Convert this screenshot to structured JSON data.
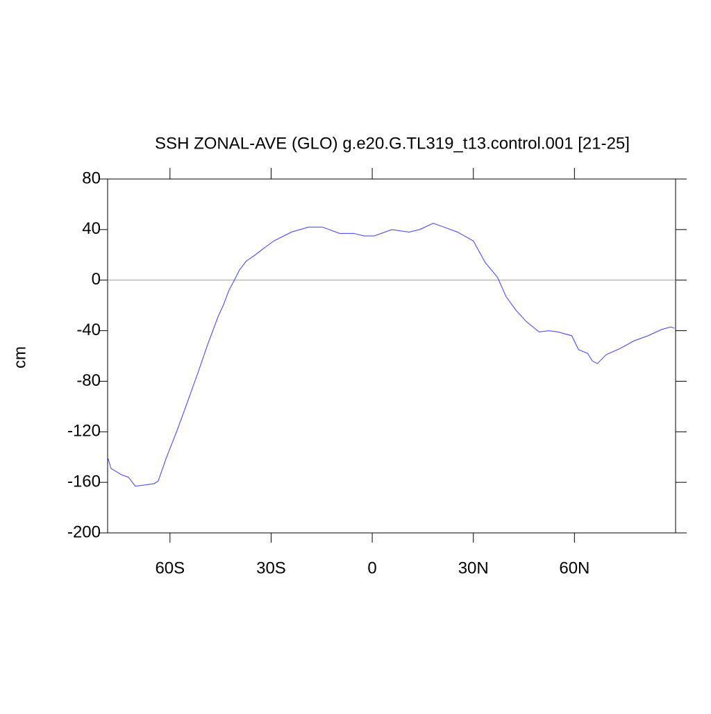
{
  "chart_data": {
    "type": "line",
    "title": "SSH ZONAL-AVE (GLO) g.e20.G.TL319_t13.control.001 [21-25]",
    "y_label": "cm",
    "x": [
      -78.5,
      -77.5,
      -74.4,
      -72.3,
      -70.3,
      -67.2,
      -64.7,
      -63.5,
      -61.0,
      -57.9,
      -54.9,
      -51.8,
      -48.7,
      -45.6,
      -44.2,
      -42.5,
      -40.9,
      -39.4,
      -37.4,
      -34.7,
      -32.3,
      -29.2,
      -24.0,
      -18.9,
      -14.8,
      -9.7,
      -5.5,
      -2.5,
      0.6,
      5.8,
      10.9,
      14.0,
      18.1,
      21.2,
      25.3,
      30.0,
      33.5,
      36.0,
      37.2,
      39.7,
      42.7,
      45.8,
      49.5,
      52.4,
      55.1,
      59.2,
      61.2,
      63.9,
      65.3,
      66.8,
      69.4,
      73.6,
      77.7,
      81.8,
      85.9,
      88.6,
      89.6
    ],
    "series": [
      {
        "name": "SSH",
        "color": "#3a3aff",
        "values": [
          -140,
          -149,
          -154,
          -156,
          -163,
          -162,
          -161,
          -159,
          -140,
          -119,
          -97,
          -74,
          -50,
          -28,
          -20,
          -8,
          0,
          8,
          15,
          20,
          25,
          31,
          38,
          42,
          42,
          37,
          37,
          35,
          35,
          40,
          38,
          40,
          45,
          42,
          38,
          31,
          14,
          6,
          2,
          -13,
          -24,
          -33,
          -41,
          -40,
          -41,
          -44,
          -55,
          -58,
          -64,
          -66,
          -59,
          -54,
          -48,
          -44,
          -39,
          -37,
          -38
        ]
      }
    ],
    "xlim": [
      -78.5,
      90
    ],
    "ylim": [
      -200,
      80
    ],
    "xticks": [
      {
        "value": -60,
        "label": "60S"
      },
      {
        "value": -30,
        "label": "30S"
      },
      0,
      {
        "value": 30,
        "label": "30N"
      },
      {
        "value": 60,
        "label": "60N"
      }
    ],
    "yticks": [
      -200,
      -160,
      -120,
      -80,
      -40,
      0,
      40,
      80
    ],
    "reference_line": 0
  }
}
